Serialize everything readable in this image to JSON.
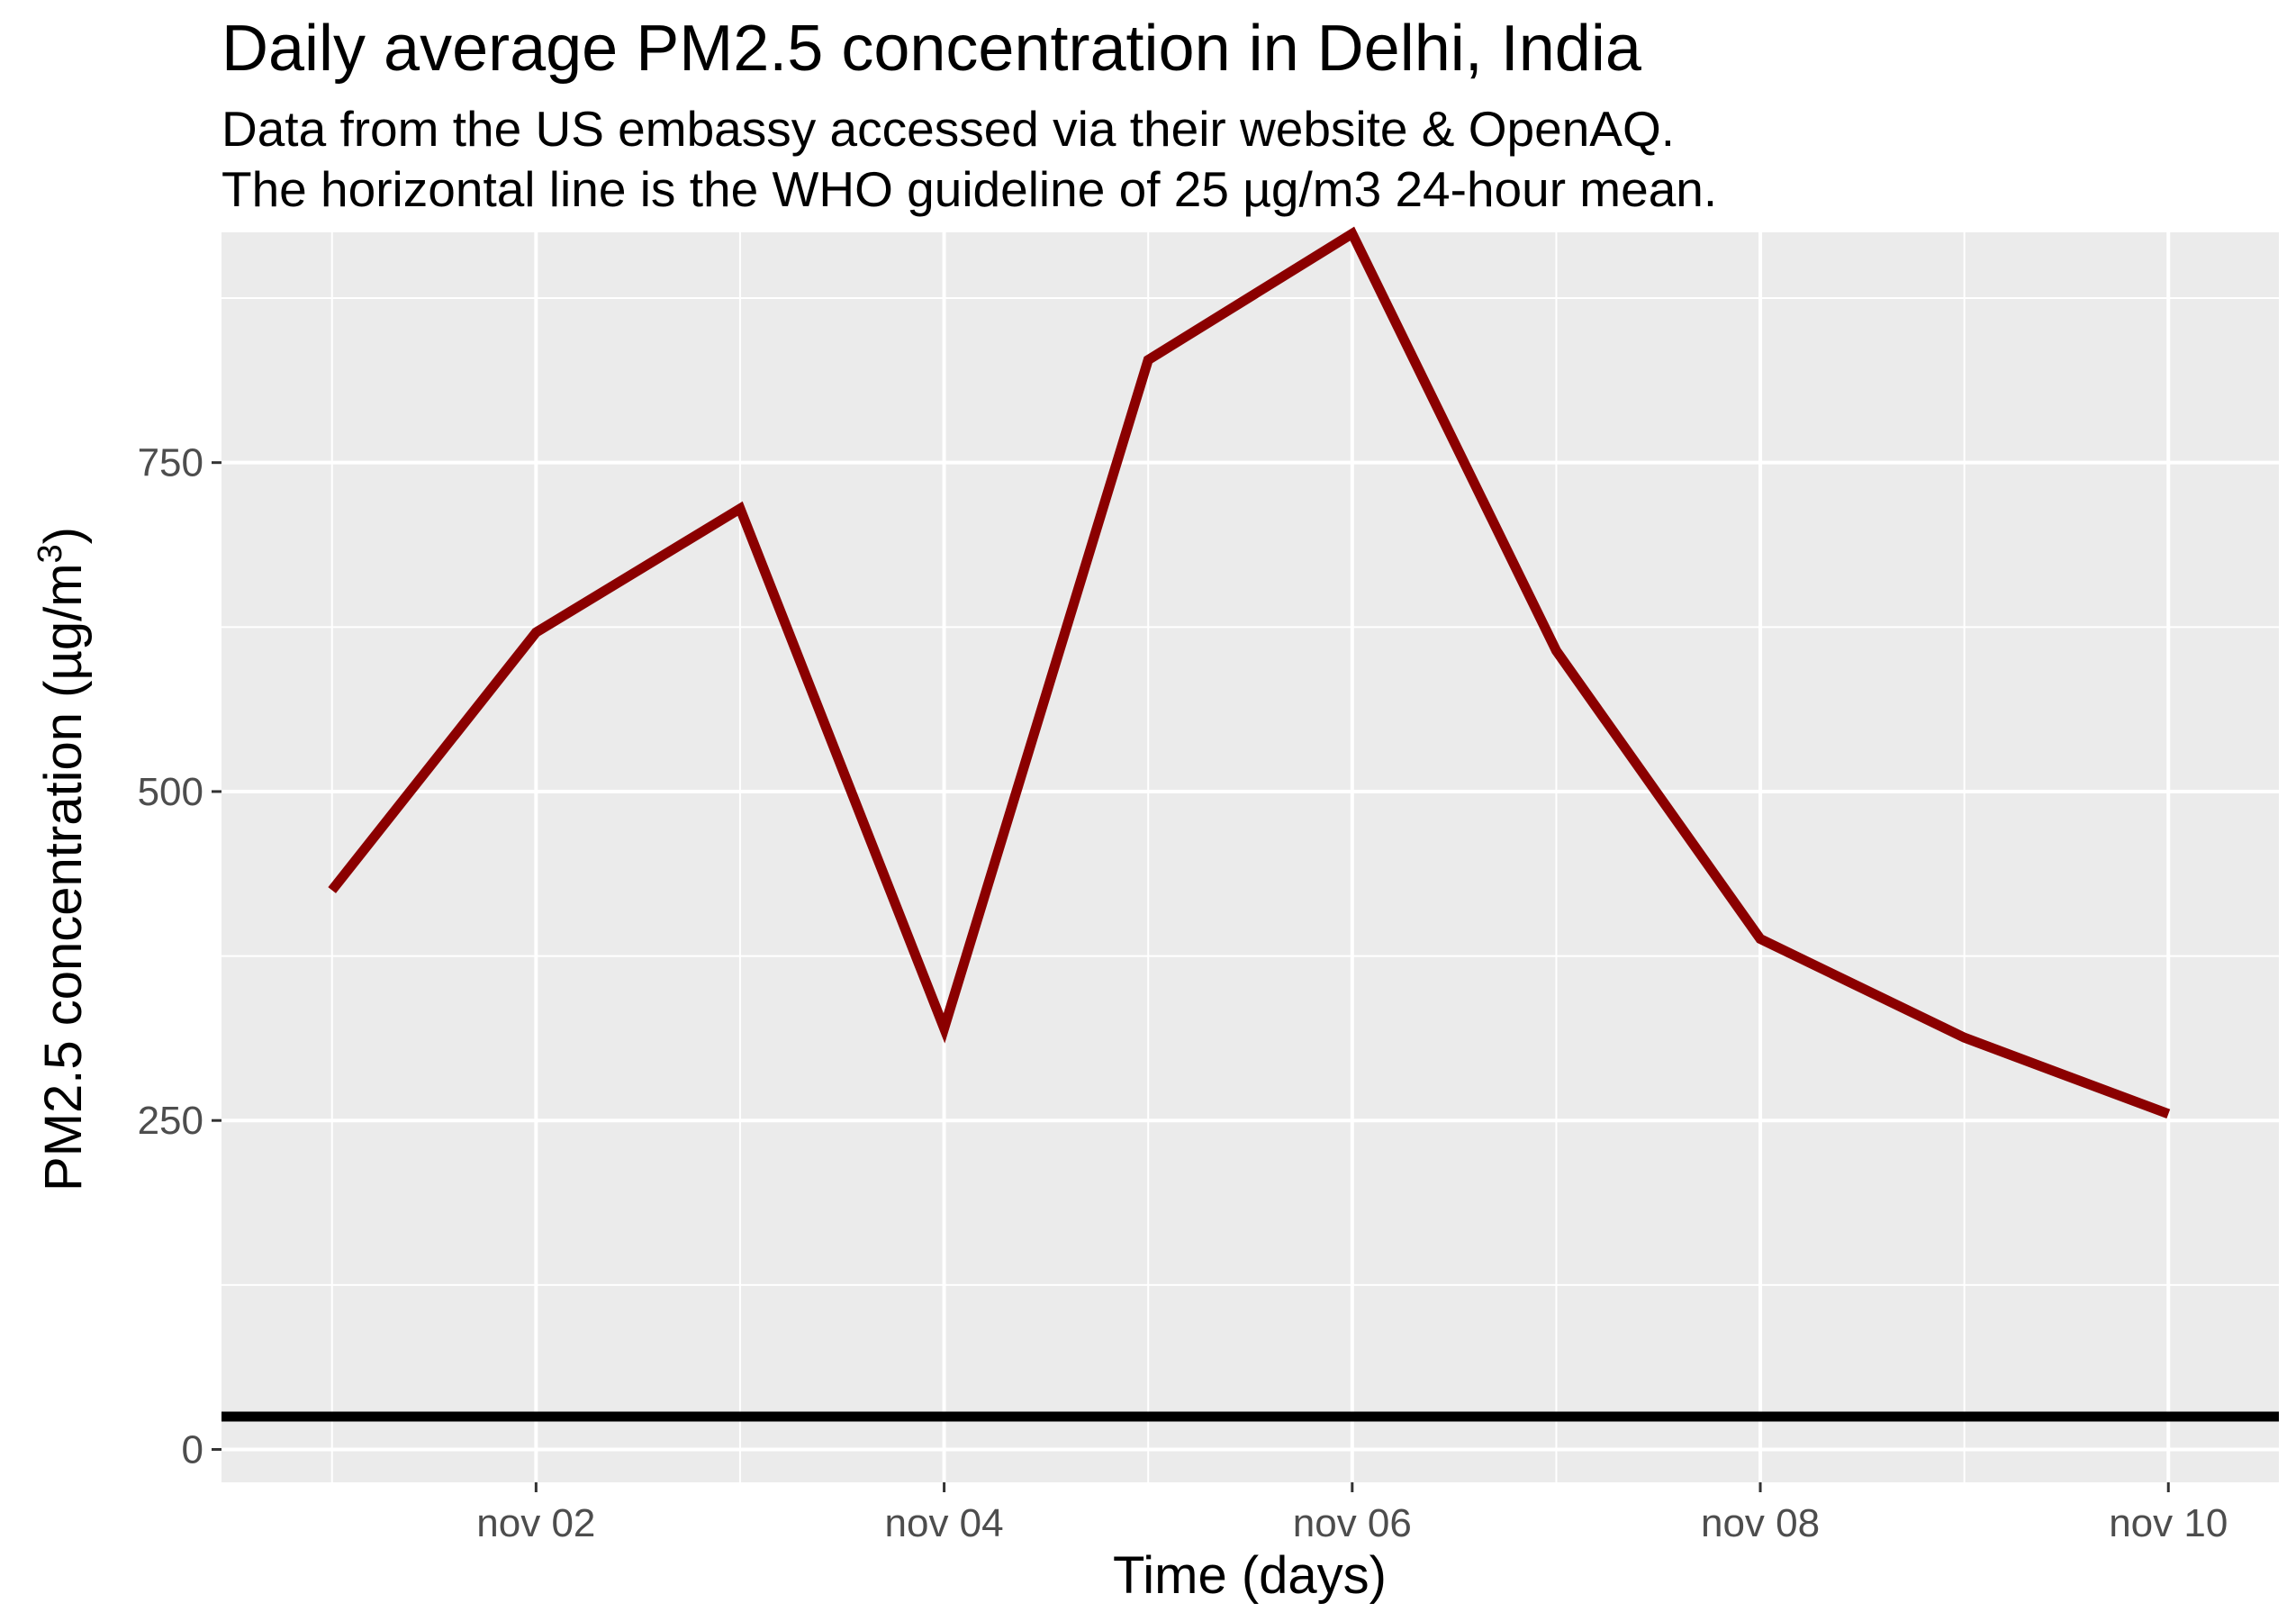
{
  "chart_data": {
    "type": "line",
    "title": "Daily average PM2.5 concentration in Delhi, India",
    "subtitle_lines": [
      "Data from the US embassy accessed via their website & OpenAQ.",
      "The horizontal line is the WHO guideline of 25 µg/m3 24-hour mean."
    ],
    "xlabel": "Time (days)",
    "ylabel": "PM2.5 concentration (µg/m",
    "ylabel_superscript": "3",
    "ylabel_close": ")",
    "x_axis_type": "date",
    "xlim": [
      "2016-10-31T11:00",
      "2016-11-10T13:00"
    ],
    "ylim": [
      -25,
      925
    ],
    "x_ticks": [
      {
        "date": "2016-11-02",
        "label": "nov 02"
      },
      {
        "date": "2016-11-04",
        "label": "nov 04"
      },
      {
        "date": "2016-11-06",
        "label": "nov 06"
      },
      {
        "date": "2016-11-08",
        "label": "nov 08"
      },
      {
        "date": "2016-11-10",
        "label": "nov 10"
      }
    ],
    "x_minor_gridlines": [
      "2016-11-01",
      "2016-11-03",
      "2016-11-05",
      "2016-11-07",
      "2016-11-09"
    ],
    "y_ticks": [
      {
        "value": 0,
        "label": "0"
      },
      {
        "value": 250,
        "label": "250"
      },
      {
        "value": 500,
        "label": "500"
      },
      {
        "value": 750,
        "label": "750"
      }
    ],
    "y_minor_gridlines": [
      125,
      375,
      625,
      875
    ],
    "grid": true,
    "legend": "none",
    "series": [
      {
        "color": "#8b0000",
        "points": [
          {
            "x": "2016-11-01",
            "y": 425
          },
          {
            "x": "2016-11-02",
            "y": 621
          },
          {
            "x": "2016-11-03",
            "y": 715
          },
          {
            "x": "2016-11-04",
            "y": 320
          },
          {
            "x": "2016-11-05",
            "y": 828
          },
          {
            "x": "2016-11-06",
            "y": 924
          },
          {
            "x": "2016-11-07",
            "y": 607
          },
          {
            "x": "2016-11-08",
            "y": 388
          },
          {
            "x": "2016-11-09",
            "y": 313
          },
          {
            "x": "2016-11-10",
            "y": 255
          }
        ]
      }
    ],
    "reference_lines": [
      {
        "y": 25,
        "color": "#000000"
      }
    ],
    "colors": {
      "panel_background": "#ebebeb",
      "gridline": "#ffffff",
      "tick_label": "#4d4d4d",
      "tick_mark": "#333333"
    }
  }
}
